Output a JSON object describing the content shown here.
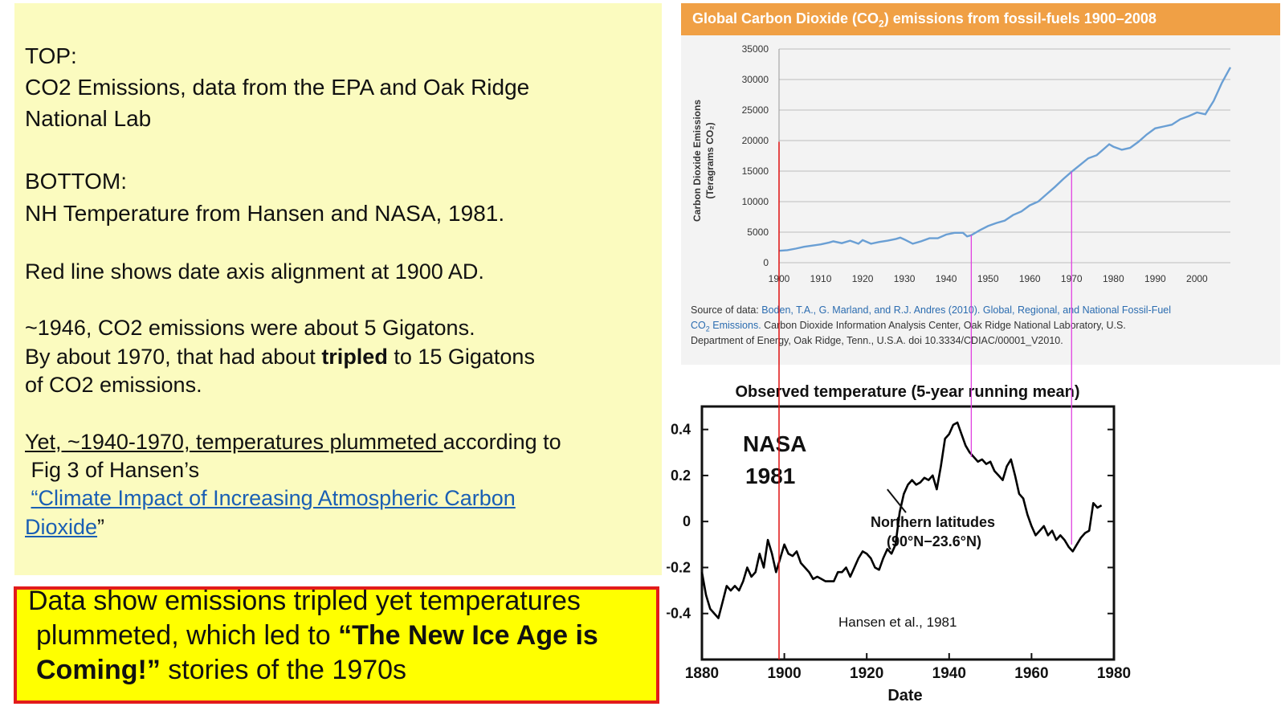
{
  "left": {
    "top_heading": "TOP:",
    "top_line1": "CO2 Emissions, data from the EPA and Oak Ridge",
    "top_line2": "National  Lab",
    "bottom_heading": "BOTTOM:",
    "bottom_line": "NH Temperature from Hansen and NASA, 1981.",
    "redline_note": "Red line shows date axis alignment at 1900 AD.",
    "p1_line1": "~1946, CO2 emissions were about 5 Gigatons.",
    "p1_line2_a": "By about 1970, that had about ",
    "p1_line2_bold": "tripled",
    "p1_line2_b": " to 15 Gigatons",
    "p1_line3": "of CO2 emissions.",
    "yet_underlined": "Yet, ~1940-1970, temperatures plummeted ",
    "yet_rest": "according to",
    "fig_line": "Fig 3 of Hansen’s",
    "open_quote": "“",
    "link_line1": "Climate Impact of Increasing Atmospheric Carbon",
    "link_line2": "Dioxide",
    "close_quote": "”"
  },
  "callout": {
    "line1": "Data show emissions tripled yet temperatures",
    "line2_a": "plummeted, which led to  ",
    "line2_bold": "“The New Ice Age is",
    "line3_bold": "Coming!”",
    "line3_b": " stories of the 1970s"
  },
  "top_chart": {
    "header_a": "Global Carbon Dioxide (CO",
    "header_sub": "2",
    "header_b": ") emissions from fossil-fuels 1900–2008",
    "ylabel_line1": "Carbon Dioxide Emissions",
    "ylabel_line2": "(Teragrams CO₂)",
    "source_line1_a": "Source of data: ",
    "source_line1_b": "Boden, T.A., G. Marland, and R.J. Andres (2010). Global, Regional, and National Fossil-Fuel",
    "source_line2_a": "CO",
    "source_line2_sub": "2",
    "source_line2_b": " Emissions.",
    "source_line2_c": " Carbon Dioxide Information Analysis Center, Oak Ridge National Laboratory, U.S.",
    "source_line3": "Department of Energy, Oak Ridge, Tenn., U.S.A. doi 10.3334/CDIAC/00001_V2010."
  },
  "bottom_chart": {
    "title": "Observed temperature (5-year running mean)",
    "nasa": "NASA",
    "year": "1981",
    "region_line1": "Northern latitudes",
    "region_line2": "(90°N−23.6°N)",
    "credit": "Hansen et al., 1981",
    "xlabel": "Date"
  },
  "chart_data": [
    {
      "type": "line",
      "title": "Global Carbon Dioxide (CO2) emissions from fossil-fuels 1900–2008",
      "ylabel": "Carbon Dioxide Emissions (Teragrams CO2)",
      "xlim": [
        1900,
        2008
      ],
      "ylim": [
        0,
        35000
      ],
      "xticks": [
        1900,
        1910,
        1920,
        1930,
        1940,
        1950,
        1960,
        1970,
        1980,
        1990,
        2000
      ],
      "yticks": [
        0,
        5000,
        10000,
        15000,
        20000,
        25000,
        30000,
        35000
      ],
      "grid": true,
      "series": [
        {
          "color": "#6a9fd4",
          "x": [
            1900,
            1902,
            1904,
            1906,
            1908,
            1910,
            1912,
            1913,
            1915,
            1917,
            1919,
            1920,
            1922,
            1924,
            1926,
            1928,
            1929,
            1930,
            1932,
            1934,
            1936,
            1938,
            1940,
            1942,
            1944,
            1945,
            1946,
            1948,
            1950,
            1952,
            1954,
            1956,
            1958,
            1960,
            1962,
            1964,
            1966,
            1968,
            1970,
            1972,
            1974,
            1976,
            1978,
            1979,
            1980,
            1982,
            1984,
            1986,
            1988,
            1990,
            1992,
            1994,
            1996,
            1998,
            2000,
            2002,
            2004,
            2006,
            2008
          ],
          "y": [
            1950,
            2050,
            2300,
            2600,
            2800,
            3000,
            3300,
            3500,
            3200,
            3600,
            3100,
            3700,
            3100,
            3400,
            3600,
            3900,
            4100,
            3800,
            3100,
            3500,
            4000,
            4000,
            4600,
            4900,
            4900,
            4300,
            4500,
            5300,
            6000,
            6500,
            6900,
            7800,
            8400,
            9400,
            10000,
            11200,
            12400,
            13700,
            14900,
            16000,
            17100,
            17600,
            18800,
            19400,
            19000,
            18500,
            18800,
            19800,
            21000,
            22000,
            22300,
            22600,
            23500,
            24000,
            24600,
            24300,
            26500,
            29500,
            32000
          ]
        }
      ]
    },
    {
      "type": "line",
      "title": "Observed temperature (5-year running mean)",
      "xlabel": "Date",
      "xlim": [
        1880,
        1980
      ],
      "ylim": [
        -0.6,
        0.5
      ],
      "xticks": [
        1880,
        1900,
        1920,
        1940,
        1960,
        1980
      ],
      "yticks": [
        -0.4,
        -0.2,
        0,
        0.2,
        0.4
      ],
      "yticklabels": [
        "−0.4",
        "−0.2",
        "0",
        "0.2",
        "0.4"
      ],
      "grid": false,
      "series": [
        {
          "color": "#000000",
          "x": [
            1880,
            1881,
            1882,
            1883,
            1884,
            1885,
            1886,
            1887,
            1888,
            1889,
            1890,
            1891,
            1892,
            1893,
            1894,
            1895,
            1896,
            1897,
            1898,
            1899,
            1900,
            1901,
            1902,
            1903,
            1904,
            1905,
            1906,
            1907,
            1908,
            1909,
            1910,
            1911,
            1912,
            1913,
            1914,
            1915,
            1916,
            1917,
            1918,
            1919,
            1920,
            1921,
            1922,
            1923,
            1924,
            1925,
            1926,
            1927,
            1928,
            1929,
            1930,
            1931,
            1932,
            1933,
            1934,
            1935,
            1936,
            1937,
            1938,
            1939,
            1940,
            1941,
            1942,
            1943,
            1944,
            1945,
            1946,
            1947,
            1948,
            1949,
            1950,
            1951,
            1952,
            1953,
            1954,
            1955,
            1956,
            1957,
            1958,
            1959,
            1960,
            1961,
            1962,
            1963,
            1964,
            1965,
            1966,
            1967,
            1968,
            1969,
            1970,
            1971,
            1972,
            1973,
            1974,
            1975,
            1976,
            1977
          ],
          "y": [
            -0.22,
            -0.32,
            -0.38,
            -0.4,
            -0.42,
            -0.35,
            -0.28,
            -0.3,
            -0.28,
            -0.3,
            -0.26,
            -0.2,
            -0.24,
            -0.22,
            -0.14,
            -0.2,
            -0.08,
            -0.14,
            -0.22,
            -0.16,
            -0.1,
            -0.14,
            -0.15,
            -0.13,
            -0.18,
            -0.2,
            -0.22,
            -0.25,
            -0.24,
            -0.25,
            -0.26,
            -0.26,
            -0.26,
            -0.22,
            -0.22,
            -0.2,
            -0.24,
            -0.2,
            -0.16,
            -0.13,
            -0.14,
            -0.16,
            -0.2,
            -0.21,
            -0.16,
            -0.12,
            -0.14,
            -0.1,
            0.04,
            0.12,
            0.16,
            0.18,
            0.16,
            0.17,
            0.19,
            0.18,
            0.2,
            0.14,
            0.24,
            0.36,
            0.38,
            0.42,
            0.43,
            0.38,
            0.33,
            0.3,
            0.28,
            0.26,
            0.27,
            0.25,
            0.26,
            0.22,
            0.2,
            0.18,
            0.24,
            0.27,
            0.2,
            0.12,
            0.1,
            0.03,
            -0.02,
            -0.06,
            -0.04,
            -0.02,
            -0.06,
            -0.04,
            -0.08,
            -0.06,
            -0.08,
            -0.11,
            -0.13,
            -0.1,
            -0.07,
            -0.05,
            -0.04,
            0.08,
            0.06,
            0.07
          ]
        }
      ],
      "annotations": [
        {
          "text": "NASA 1981"
        },
        {
          "text": "Northern latitudes (90°N−23.6°N)"
        },
        {
          "text": "Hansen et al., 1981"
        }
      ]
    }
  ],
  "reference_lines": {
    "red_year": 1900,
    "magenta_years": [
      1946,
      1970
    ],
    "red_color": "#e01010",
    "magenta_color": "#e040e0"
  }
}
